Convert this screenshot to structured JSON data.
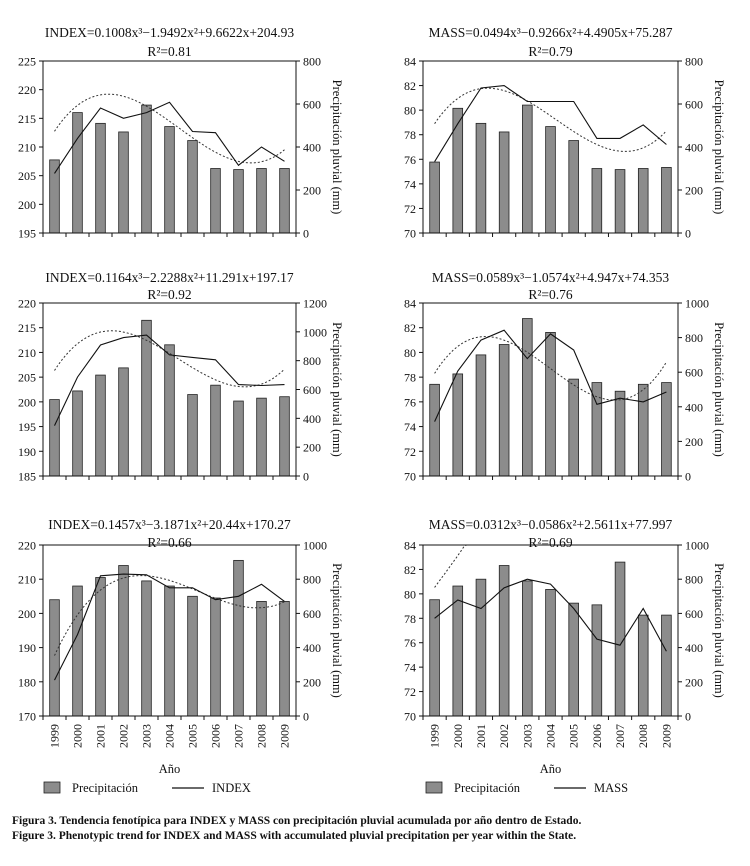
{
  "years": [
    "1999",
    "2000",
    "2001",
    "2002",
    "2003",
    "2004",
    "2005",
    "2006",
    "2007",
    "2008",
    "2009"
  ],
  "right_axis_label": "Precipitación pluvial (mm)",
  "x_axis_label": "Año",
  "legend": {
    "left": {
      "bar": "Precipitación",
      "line": "INDEX"
    },
    "right": {
      "bar": "Precipitación",
      "line": "MASS"
    }
  },
  "colors": {
    "bar": "#8c8c8c",
    "line": "#111111",
    "trend": "#333333"
  },
  "caption": {
    "es": "Figura 3. Tendencia fenotípica para INDEX y MASS con precipitación pluvial acumulada por año dentro de Estado.",
    "en": "Figure 3. Phenotypic trend for INDEX and MASS with accumulated pluvial precipitation per year within the State."
  },
  "chart_data": [
    {
      "type": "bar+line",
      "series_name": "INDEX",
      "title": "INDEX=0.1008x³−1.9492x²+9.6622x+204.93",
      "r2": "R²=0.81",
      "ylim": [
        195,
        225
      ],
      "yticks": [
        195,
        200,
        205,
        210,
        215,
        220,
        225
      ],
      "y2lim": [
        0,
        800
      ],
      "y2ticks": [
        0,
        200,
        400,
        600,
        800
      ],
      "precipitation": [
        340,
        560,
        510,
        470,
        595,
        495,
        430,
        300,
        295,
        300,
        300
      ],
      "values": [
        205.4,
        211.5,
        216.8,
        215.0,
        216.0,
        217.8,
        212.7,
        212.5,
        206.8,
        210.0,
        207.5
      ],
      "coef": [
        0.1008,
        -1.9492,
        9.6622,
        204.93
      ]
    },
    {
      "type": "bar+line",
      "series_name": "MASS",
      "title": "MASS=0.0494x³−0.9266x²+4.4905x+75.287",
      "r2": "R²=0.79",
      "ylim": [
        70,
        84
      ],
      "yticks": [
        70,
        72,
        74,
        76,
        78,
        80,
        82,
        84
      ],
      "y2lim": [
        0,
        800
      ],
      "y2ticks": [
        0,
        200,
        400,
        600,
        800
      ],
      "precipitation": [
        330,
        580,
        510,
        470,
        595,
        495,
        430,
        300,
        295,
        300,
        305
      ],
      "values": [
        75.8,
        78.9,
        81.8,
        82.0,
        80.7,
        80.7,
        80.7,
        77.7,
        77.7,
        78.8,
        77.2
      ],
      "coef": [
        0.0494,
        -0.9266,
        4.4905,
        75.287
      ]
    },
    {
      "type": "bar+line",
      "series_name": "INDEX",
      "title": "INDEX=0.1164x³−2.2288x²+11.291x+197.17",
      "r2": "R²=0.92",
      "ylim": [
        185,
        220
      ],
      "yticks": [
        185,
        190,
        195,
        200,
        205,
        210,
        215,
        220
      ],
      "y2lim": [
        0,
        1200
      ],
      "y2ticks": [
        0,
        200,
        400,
        600,
        800,
        1000,
        1200
      ],
      "precipitation": [
        530,
        590,
        700,
        750,
        1080,
        910,
        565,
        630,
        520,
        540,
        550
      ],
      "values": [
        195.2,
        205.0,
        211.5,
        213.0,
        213.5,
        209.5,
        209.0,
        208.5,
        203.5,
        203.3,
        203.5
      ],
      "coef": [
        0.1164,
        -2.2288,
        11.291,
        197.17
      ]
    },
    {
      "type": "bar+line",
      "series_name": "MASS",
      "title": "MASS=0.0589x³−1.0574x²+4.947x+74.353",
      "r2": "R²=0.76",
      "ylim": [
        70,
        84
      ],
      "yticks": [
        70,
        72,
        74,
        76,
        78,
        80,
        82,
        84
      ],
      "y2lim": [
        0,
        1000
      ],
      "y2ticks": [
        0,
        200,
        400,
        600,
        800,
        1000
      ],
      "precipitation": [
        530,
        590,
        700,
        760,
        910,
        830,
        560,
        540,
        490,
        530,
        540
      ],
      "values": [
        74.4,
        78.5,
        81.0,
        81.8,
        79.5,
        81.5,
        80.2,
        75.8,
        76.3,
        76.0,
        76.8
      ],
      "coef": [
        0.0589,
        -1.0574,
        4.947,
        74.353
      ]
    },
    {
      "type": "bar+line",
      "series_name": "INDEX",
      "title": "INDEX=0.1457x³−3.1871x²+20.44x+170.27",
      "r2": "R²=0.66",
      "ylim": [
        170,
        220
      ],
      "yticks": [
        170,
        180,
        190,
        200,
        210,
        220
      ],
      "y2lim": [
        0,
        1000
      ],
      "y2ticks": [
        0,
        200,
        400,
        600,
        800,
        1000
      ],
      "precipitation": [
        680,
        760,
        810,
        880,
        790,
        760,
        700,
        690,
        910,
        670,
        670
      ],
      "values": [
        180.5,
        193.8,
        211.0,
        211.5,
        211.3,
        207.5,
        207.5,
        204.0,
        205.0,
        208.5,
        203.5
      ],
      "coef": [
        0.1457,
        -3.1871,
        20.44,
        170.27
      ]
    },
    {
      "type": "bar+line",
      "series_name": "MASS",
      "title": "MASS=0.0312x³−0.0586x²+2.5611x+77.997",
      "r2": "R²=0.69",
      "ylim": [
        70,
        84
      ],
      "yticks": [
        70,
        72,
        74,
        76,
        78,
        80,
        82,
        84
      ],
      "y2lim": [
        0,
        1000
      ],
      "y2ticks": [
        0,
        200,
        400,
        600,
        800,
        1000
      ],
      "precipitation": [
        680,
        760,
        800,
        880,
        790,
        740,
        660,
        650,
        900,
        590,
        590
      ],
      "values": [
        78.0,
        79.5,
        78.8,
        80.5,
        81.2,
        80.8,
        78.8,
        76.3,
        75.8,
        78.8,
        75.3
      ],
      "coef": [
        0.0312,
        -0.0586,
        2.5611,
        77.997
      ]
    }
  ]
}
